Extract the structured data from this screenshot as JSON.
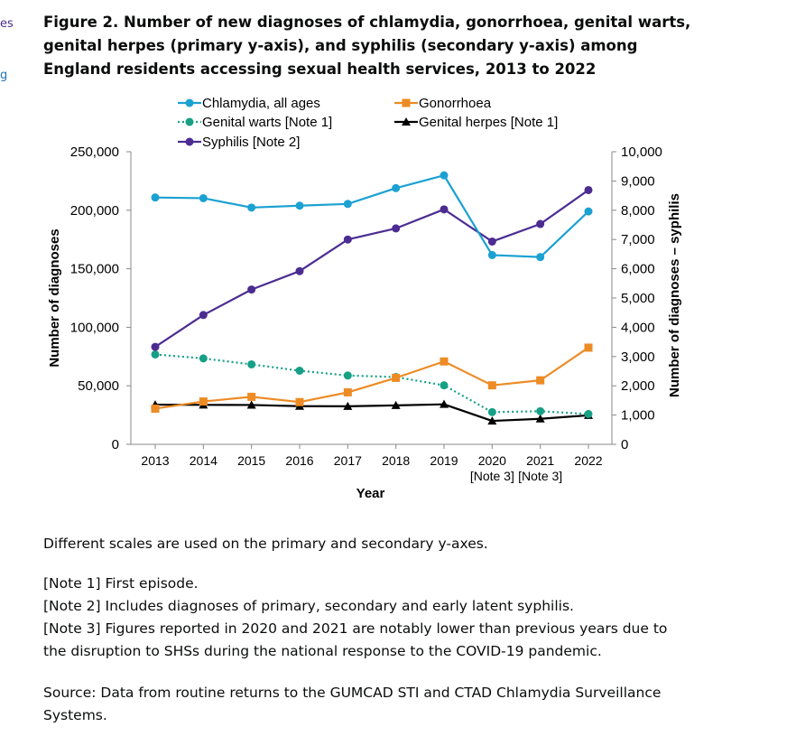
{
  "edge_fragments": [
    "es",
    "g"
  ],
  "figure_title": "Figure 2. Number of new diagnoses of chlamydia, gonorrhoea, genital warts, genital herpes (primary y-axis), and syphilis (secondary y-axis) among England residents accessing sexual health services, 2013 to 2022",
  "notes": {
    "scales": "Different scales are used on the primary and secondary y-axes.",
    "note1": "[Note 1] First episode.",
    "note2": "[Note 2] Includes diagnoses of primary, secondary and early latent syphilis.",
    "note3": "[Note 3] Figures reported in 2020 and 2021 are notably lower than previous years due to the disruption to SHSs during the national response to the COVID-19 pandemic.",
    "source": "Source: Data from routine returns to the GUMCAD STI and CTAD Chlamydia Surveillance Systems."
  },
  "chart_data": {
    "type": "line",
    "xlabel": "Year",
    "ylabel": "Number of diagnoses",
    "y2label": "Number of diagnoses – syphilis",
    "x": [
      "2013",
      "2014",
      "2015",
      "2016",
      "2017",
      "2018",
      "2019",
      "2020",
      "2021",
      "2022"
    ],
    "x_sublabels": [
      "",
      "",
      "",
      "",
      "",
      "",
      "",
      "[Note 3]",
      "[Note 3]",
      ""
    ],
    "ylim": [
      0,
      250000
    ],
    "y_ticks": [
      "0",
      "50,000",
      "100,000",
      "150,000",
      "200,000",
      "250,000"
    ],
    "y2lim": [
      0,
      10000
    ],
    "y2_ticks": [
      "0",
      "1,000",
      "2,000",
      "3,000",
      "4,000",
      "5,000",
      "6,000",
      "7,000",
      "8,000",
      "9,000",
      "10,000"
    ],
    "legend_position": "top",
    "series": [
      {
        "name": "Chlamydia, all ages",
        "axis": "primary",
        "color": "#1ba1d2",
        "marker": "circle",
        "dash": "solid",
        "values": [
          210900,
          210300,
          202300,
          203900,
          205400,
          218900,
          229800,
          161700,
          160000,
          199000
        ]
      },
      {
        "name": "Gonorrhoea",
        "axis": "primary",
        "color": "#ed8b25",
        "marker": "square",
        "dash": "solid",
        "values": [
          30500,
          36600,
          40600,
          36100,
          44400,
          56800,
          70800,
          50400,
          54700,
          82600
        ]
      },
      {
        "name": "Genital warts [Note 1]",
        "axis": "primary",
        "color": "#16a085",
        "marker": "circle",
        "dash": "dotted",
        "values": [
          76800,
          73400,
          68300,
          62900,
          58800,
          57500,
          50400,
          27500,
          28300,
          25900
        ]
      },
      {
        "name": "Genital herpes [Note 1]",
        "axis": "primary",
        "color": "#000000",
        "marker": "triangle",
        "dash": "solid",
        "values": [
          33900,
          33700,
          33600,
          32600,
          32500,
          33300,
          34200,
          20000,
          21800,
          24800
        ]
      },
      {
        "name": "Syphilis [Note 2]",
        "axis": "secondary",
        "color": "#4c2c92",
        "marker": "circle",
        "dash": "solid",
        "values": [
          3330,
          4420,
          5290,
          5920,
          7000,
          7380,
          8030,
          6930,
          7530,
          8690
        ]
      }
    ]
  }
}
